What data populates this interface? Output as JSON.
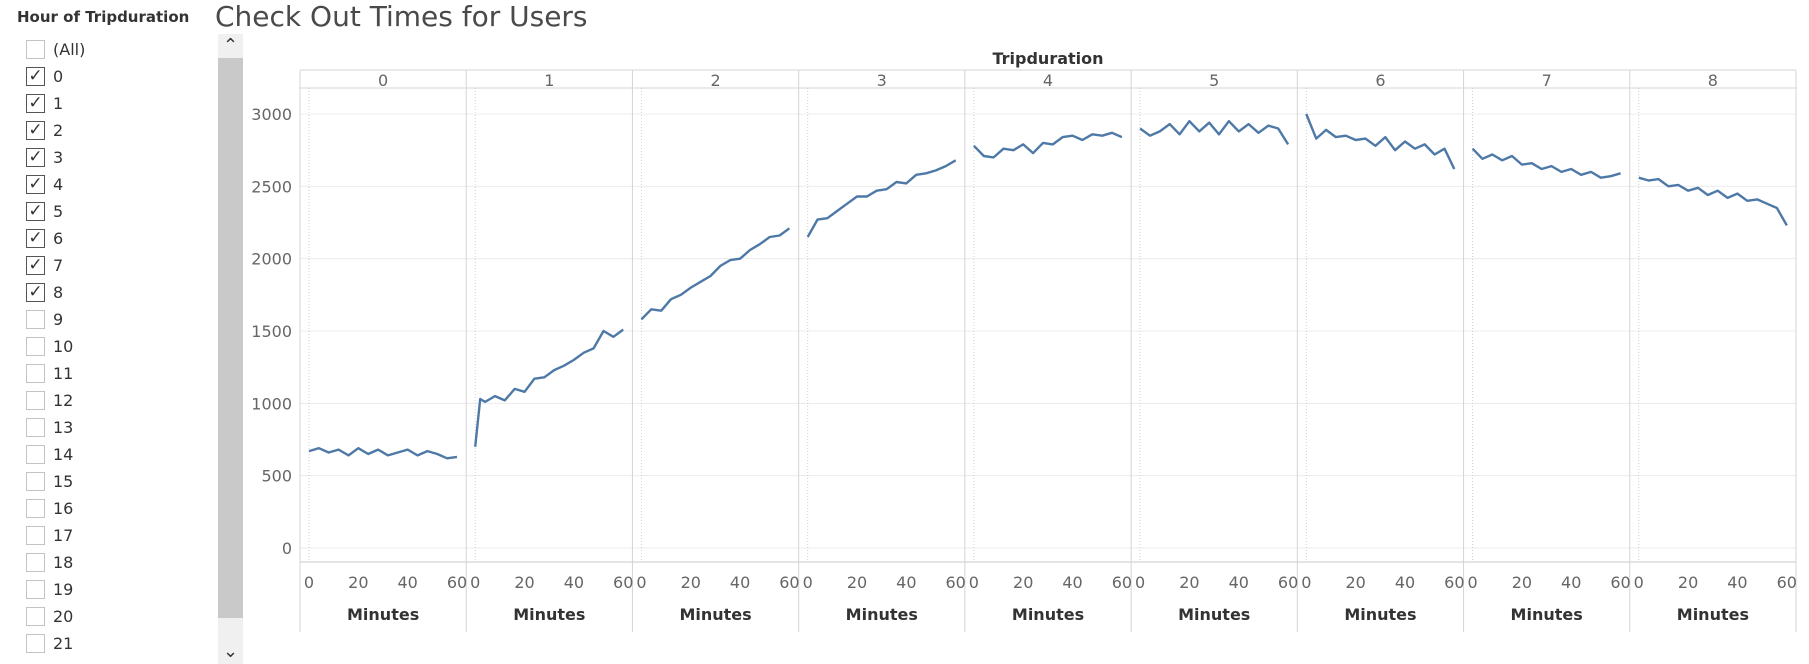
{
  "filter": {
    "title": "Hour of Tripduration",
    "items": [
      {
        "label": "(All)",
        "checked": false
      },
      {
        "label": "0",
        "checked": true
      },
      {
        "label": "1",
        "checked": true
      },
      {
        "label": "2",
        "checked": true
      },
      {
        "label": "3",
        "checked": true
      },
      {
        "label": "4",
        "checked": true
      },
      {
        "label": "5",
        "checked": true
      },
      {
        "label": "6",
        "checked": true
      },
      {
        "label": "7",
        "checked": true
      },
      {
        "label": "8",
        "checked": true
      },
      {
        "label": "9",
        "checked": false
      },
      {
        "label": "10",
        "checked": false
      },
      {
        "label": "11",
        "checked": false
      },
      {
        "label": "12",
        "checked": false
      },
      {
        "label": "13",
        "checked": false
      },
      {
        "label": "14",
        "checked": false
      },
      {
        "label": "15",
        "checked": false
      },
      {
        "label": "16",
        "checked": false
      },
      {
        "label": "17",
        "checked": false
      },
      {
        "label": "18",
        "checked": false
      },
      {
        "label": "19",
        "checked": false
      },
      {
        "label": "20",
        "checked": false
      },
      {
        "label": "21",
        "checked": false
      }
    ],
    "check_glyph": "✓",
    "scroll_up_glyph": "⌃",
    "scroll_down_glyph": "⌄"
  },
  "chart_data": {
    "type": "line",
    "title": "Check Out Times for Users",
    "column_header": "Tripduration",
    "panel_labels": [
      "0",
      "1",
      "2",
      "3",
      "4",
      "5",
      "6",
      "7",
      "8"
    ],
    "xlabel": "Minutes",
    "ylabel": "",
    "xlim": [
      0,
      60
    ],
    "xticks": [
      0,
      20,
      40,
      60
    ],
    "ylim": [
      0,
      3000
    ],
    "yticks": [
      0,
      500,
      1000,
      1500,
      2000,
      2500,
      3000
    ],
    "grid": true,
    "line_color": "#4e79a7",
    "series": [
      {
        "panel": "0",
        "x": [
          0,
          4,
          8,
          12,
          16,
          20,
          24,
          28,
          32,
          36,
          40,
          44,
          48,
          52,
          56,
          60
        ],
        "values": [
          670,
          690,
          660,
          680,
          640,
          690,
          650,
          680,
          640,
          660,
          680,
          640,
          670,
          650,
          620,
          630
        ]
      },
      {
        "panel": "1",
        "x": [
          0,
          2,
          4,
          8,
          12,
          16,
          20,
          24,
          28,
          32,
          36,
          40,
          44,
          48,
          52,
          56,
          60
        ],
        "values": [
          700,
          1030,
          1010,
          1050,
          1020,
          1100,
          1080,
          1170,
          1180,
          1230,
          1260,
          1300,
          1350,
          1380,
          1500,
          1460,
          1510
        ]
      },
      {
        "panel": "2",
        "x": [
          0,
          4,
          8,
          12,
          16,
          20,
          24,
          28,
          32,
          36,
          40,
          44,
          48,
          52,
          56,
          60
        ],
        "values": [
          1580,
          1650,
          1640,
          1720,
          1750,
          1800,
          1840,
          1880,
          1950,
          1990,
          2000,
          2060,
          2100,
          2150,
          2160,
          2210
        ]
      },
      {
        "panel": "3",
        "x": [
          0,
          4,
          8,
          12,
          16,
          20,
          24,
          28,
          32,
          36,
          40,
          44,
          48,
          52,
          56,
          60
        ],
        "values": [
          2150,
          2270,
          2280,
          2330,
          2380,
          2430,
          2430,
          2470,
          2480,
          2530,
          2520,
          2580,
          2590,
          2610,
          2640,
          2680
        ]
      },
      {
        "panel": "4",
        "x": [
          0,
          4,
          8,
          12,
          16,
          20,
          24,
          28,
          32,
          36,
          40,
          44,
          48,
          52,
          56,
          60
        ],
        "values": [
          2780,
          2710,
          2700,
          2760,
          2750,
          2790,
          2730,
          2800,
          2790,
          2840,
          2850,
          2820,
          2860,
          2850,
          2870,
          2840
        ]
      },
      {
        "panel": "5",
        "x": [
          0,
          4,
          8,
          12,
          16,
          20,
          24,
          28,
          32,
          36,
          40,
          44,
          48,
          52,
          56,
          60
        ],
        "values": [
          2900,
          2850,
          2880,
          2930,
          2860,
          2950,
          2880,
          2940,
          2860,
          2950,
          2880,
          2930,
          2870,
          2920,
          2900,
          2790
        ]
      },
      {
        "panel": "6",
        "x": [
          0,
          4,
          8,
          12,
          16,
          20,
          24,
          28,
          32,
          36,
          40,
          44,
          48,
          52,
          56,
          60
        ],
        "values": [
          3000,
          2830,
          2890,
          2840,
          2850,
          2820,
          2830,
          2780,
          2840,
          2750,
          2810,
          2760,
          2790,
          2720,
          2760,
          2620
        ]
      },
      {
        "panel": "7",
        "x": [
          0,
          4,
          8,
          12,
          16,
          20,
          24,
          28,
          32,
          36,
          40,
          44,
          48,
          52,
          56,
          60
        ],
        "values": [
          2760,
          2690,
          2720,
          2680,
          2710,
          2650,
          2660,
          2620,
          2640,
          2600,
          2620,
          2580,
          2600,
          2560,
          2570,
          2590
        ]
      },
      {
        "panel": "8",
        "x": [
          0,
          4,
          8,
          12,
          16,
          20,
          24,
          28,
          32,
          36,
          40,
          44,
          48,
          52,
          56,
          60
        ],
        "values": [
          2560,
          2540,
          2550,
          2500,
          2510,
          2470,
          2490,
          2440,
          2470,
          2420,
          2450,
          2400,
          2410,
          2380,
          2350,
          2230
        ]
      }
    ]
  }
}
